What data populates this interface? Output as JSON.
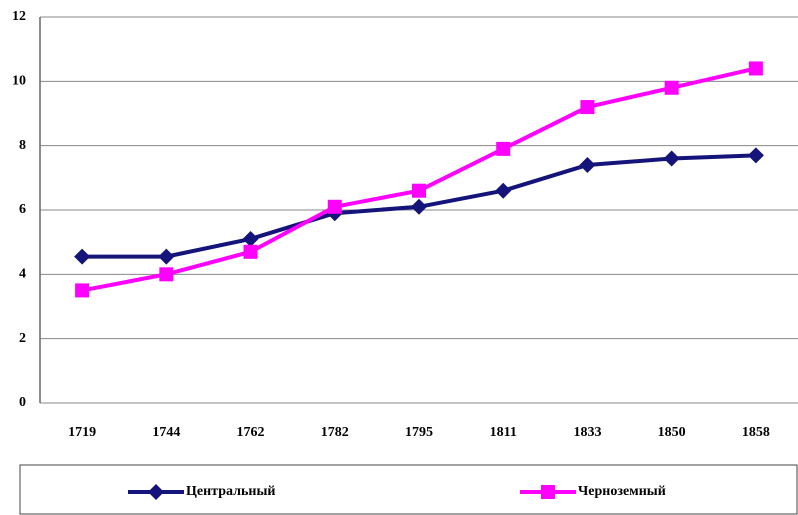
{
  "chart_data": {
    "type": "line",
    "categories": [
      "1719",
      "1744",
      "1762",
      "1782",
      "1795",
      "1811",
      "1833",
      "1850",
      "1858"
    ],
    "series": [
      {
        "name": "Центральный",
        "color": "#14147a",
        "marker": "diamond",
        "values": [
          4.55,
          4.55,
          5.1,
          5.9,
          6.1,
          6.6,
          7.4,
          7.6,
          7.7
        ]
      },
      {
        "name": "Черноземный",
        "color": "#ff00ff",
        "marker": "square",
        "values": [
          3.5,
          4.0,
          4.7,
          6.1,
          6.6,
          7.9,
          9.2,
          9.8,
          10.4
        ]
      }
    ],
    "ylim": [
      0,
      12
    ],
    "yticks": [
      0,
      2,
      4,
      6,
      8,
      10,
      12
    ],
    "grid": true
  }
}
